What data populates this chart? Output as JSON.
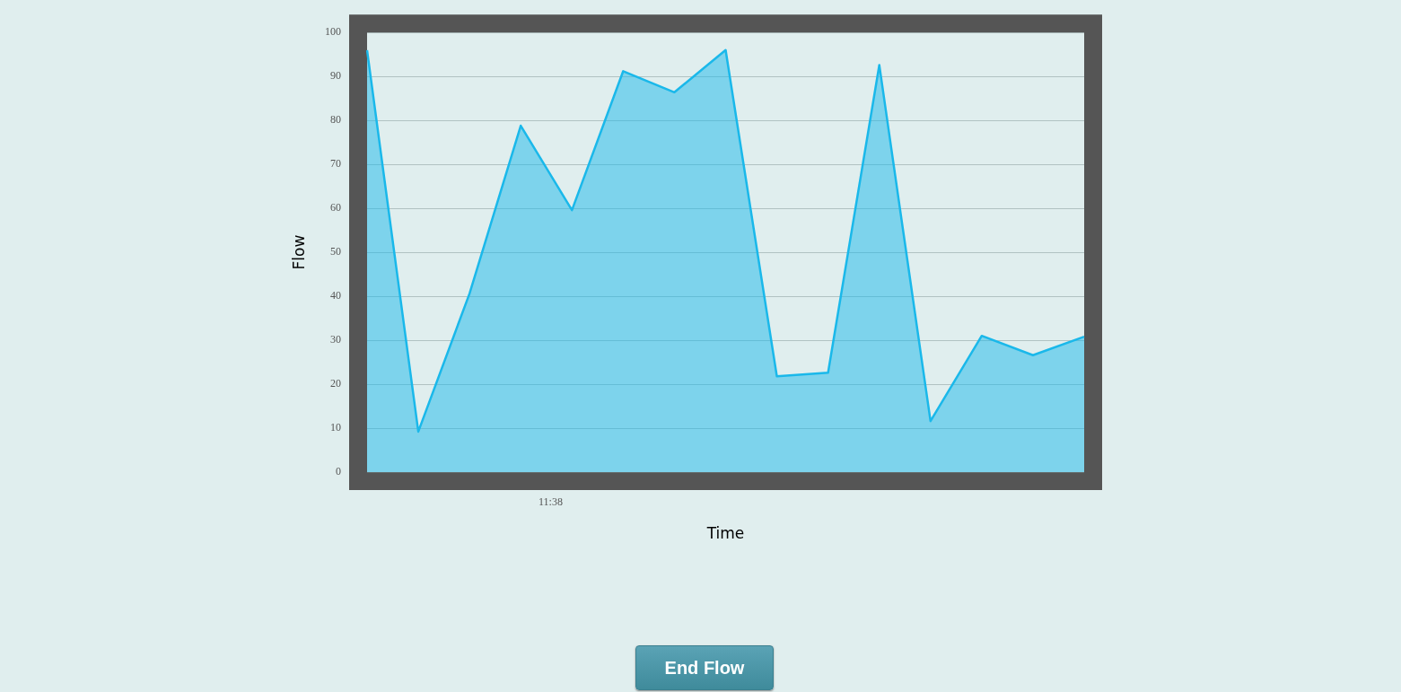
{
  "chart_data": {
    "type": "area",
    "xlabel": "Time",
    "ylabel": "Flow",
    "categories": [
      null,
      null,
      null,
      null,
      null,
      null,
      null,
      null,
      null,
      null,
      null,
      null,
      null,
      null,
      null
    ],
    "series": [
      {
        "color": "#1ab8ea",
        "values": [
          96,
          9.2,
          40.6,
          78.8,
          59.6,
          91.2,
          86.4,
          96,
          21.8,
          22.6,
          92.6,
          11.6,
          31,
          26.6,
          30.8
        ]
      }
    ],
    "ylim": [
      0,
      100
    ],
    "yticks": [
      0,
      10,
      20,
      30,
      40,
      50,
      60,
      70,
      80,
      90,
      100
    ],
    "grid": "y",
    "legend": false,
    "marker": "none",
    "line_style": "solid",
    "annotations": [
      "11:38",
      "End Flow"
    ]
  }
}
